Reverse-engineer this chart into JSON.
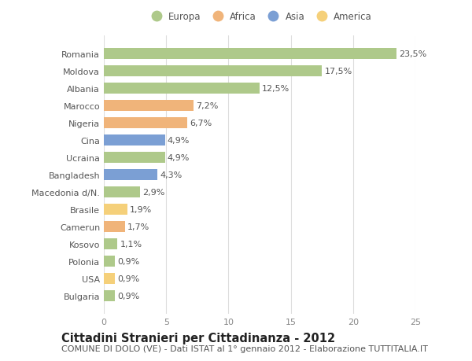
{
  "categories": [
    "Romania",
    "Moldova",
    "Albania",
    "Marocco",
    "Nigeria",
    "Cina",
    "Ucraina",
    "Bangladesh",
    "Macedonia d/N.",
    "Brasile",
    "Camerun",
    "Kosovo",
    "Polonia",
    "USA",
    "Bulgaria"
  ],
  "values": [
    23.5,
    17.5,
    12.5,
    7.2,
    6.7,
    4.9,
    4.9,
    4.3,
    2.9,
    1.9,
    1.7,
    1.1,
    0.9,
    0.9,
    0.9
  ],
  "labels": [
    "23,5%",
    "17,5%",
    "12,5%",
    "7,2%",
    "6,7%",
    "4,9%",
    "4,9%",
    "4,3%",
    "2,9%",
    "1,9%",
    "1,7%",
    "1,1%",
    "0,9%",
    "0,9%",
    "0,9%"
  ],
  "continents": [
    "Europa",
    "Europa",
    "Europa",
    "Africa",
    "Africa",
    "Asia",
    "Europa",
    "Asia",
    "Europa",
    "America",
    "Africa",
    "Europa",
    "Europa",
    "America",
    "Europa"
  ],
  "colors": {
    "Europa": "#aec98a",
    "Africa": "#f0b47a",
    "Asia": "#7b9fd4",
    "America": "#f5d07a"
  },
  "legend_order": [
    "Europa",
    "Africa",
    "Asia",
    "America"
  ],
  "legend_colors": {
    "Europa": "#aec98a",
    "Africa": "#f0b47a",
    "Asia": "#7b9fd4",
    "America": "#f5d07a"
  },
  "xlim": [
    0,
    25
  ],
  "xticks": [
    0,
    5,
    10,
    15,
    20,
    25
  ],
  "background_color": "#ffffff",
  "grid_color": "#dddddd",
  "title": "Cittadini Stranieri per Cittadinanza - 2012",
  "subtitle": "COMUNE DI DOLO (VE) - Dati ISTAT al 1° gennaio 2012 - Elaborazione TUTTITALIA.IT",
  "title_fontsize": 10.5,
  "subtitle_fontsize": 8,
  "label_fontsize": 8,
  "tick_fontsize": 8,
  "legend_fontsize": 8.5,
  "bar_height": 0.65
}
